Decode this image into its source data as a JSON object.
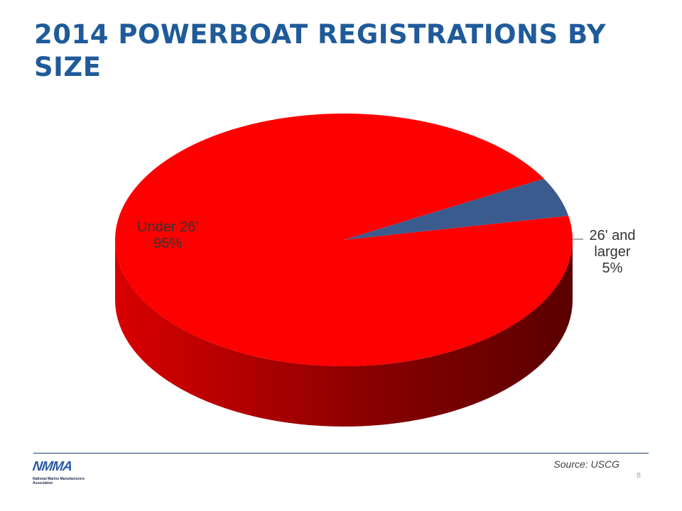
{
  "slide": {
    "title": "2014  POWERBOAT REGISTRATIONS BY SIZE",
    "source": "Source: USCG",
    "page_number": "8"
  },
  "logo": {
    "mark": "NMMA",
    "name": "National Marine Manufacturers Association"
  },
  "chart_data": {
    "type": "pie",
    "style": "3d",
    "title": "",
    "slices": [
      {
        "label": "Under 26'",
        "value": 95,
        "value_label": "95%",
        "color": "#ff0000",
        "side_color": "#b30000"
      },
      {
        "label": "26' and larger",
        "value": 5,
        "value_label": "5%",
        "color": "#3b5b8e",
        "side_color": "#26406a"
      }
    ],
    "legend": "none"
  }
}
